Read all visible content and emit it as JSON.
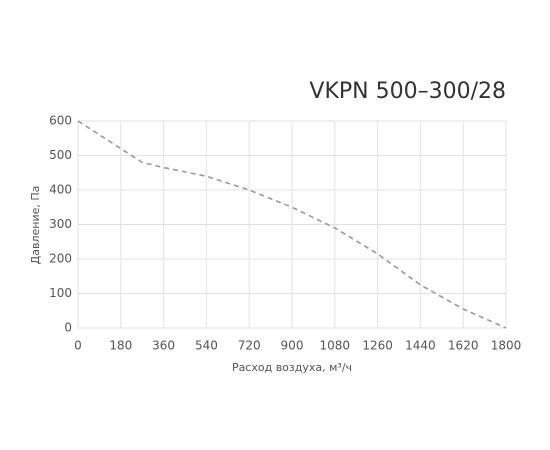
{
  "chart_data": {
    "type": "line",
    "title": "VKPN 500–300/28",
    "x_label": "Расход воздуха, м³/ч",
    "y_label": "Давление, Па",
    "x": [
      0,
      180,
      270,
      360,
      540,
      720,
      900,
      1080,
      1260,
      1440,
      1620,
      1800
    ],
    "series": [
      {
        "name": "VKPN 500–300/28",
        "color": "#999999",
        "values": [
          600,
          520,
          480,
          465,
          440,
          400,
          350,
          290,
          215,
          125,
          55,
          0
        ]
      }
    ],
    "xlim": [
      0,
      1800
    ],
    "xticks": [
      0,
      180,
      360,
      540,
      720,
      900,
      1080,
      1260,
      1440,
      1620,
      1800
    ],
    "ylim": [
      0,
      600
    ],
    "yticks": [
      0,
      100,
      200,
      300,
      400,
      500,
      600
    ],
    "grid": true,
    "dashed": true
  }
}
